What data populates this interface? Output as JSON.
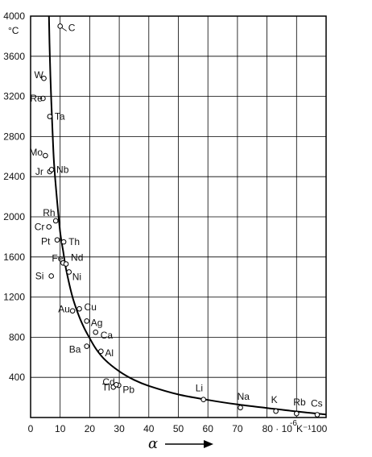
{
  "chart_data": {
    "type": "scatter",
    "xlim": [
      0,
      100
    ],
    "ylim": [
      0,
      4000
    ],
    "grid": true,
    "x_ticks": [
      0,
      10,
      20,
      30,
      40,
      50,
      60,
      70,
      80
    ],
    "x_tick_labels": [
      "0",
      "10",
      "20",
      "30",
      "40",
      "50",
      "60",
      "70",
      "80 · 10"
    ],
    "x_end_label": "K⁻¹100",
    "x_exponent": "-6",
    "y_ticks": [
      400,
      800,
      1200,
      1600,
      2000,
      2400,
      2800,
      3200,
      3600,
      4000
    ],
    "y_tick_labels": [
      "400",
      "800",
      "1200",
      "1600",
      "2000",
      "2400",
      "2800",
      "3200",
      "3600",
      "4000"
    ],
    "y_unit": "°C",
    "xlabel": "α",
    "points": [
      {
        "label": "C",
        "x": 10,
        "y": 3900
      },
      {
        "label": "W",
        "x": 4.5,
        "y": 3380
      },
      {
        "label": "Re",
        "x": 4.2,
        "y": 3180
      },
      {
        "label": "Ta",
        "x": 6.5,
        "y": 3000
      },
      {
        "label": "Mo",
        "x": 5.0,
        "y": 2610
      },
      {
        "label": "Jr",
        "x": 6.5,
        "y": 2450
      },
      {
        "label": "Nb",
        "x": 7.1,
        "y": 2470
      },
      {
        "label": "Rh",
        "x": 8.5,
        "y": 1960
      },
      {
        "label": "Cr",
        "x": 6.2,
        "y": 1900
      },
      {
        "label": "Th",
        "x": 11.2,
        "y": 1750
      },
      {
        "label": "Pt",
        "x": 9.0,
        "y": 1770
      },
      {
        "label": "Fe",
        "x": 11.0,
        "y": 1540
      },
      {
        "label": "Nd",
        "x": 12.0,
        "y": 1530
      },
      {
        "label": "Si",
        "x": 7.0,
        "y": 1410
      },
      {
        "label": "Ni",
        "x": 13.0,
        "y": 1450
      },
      {
        "label": "Au",
        "x": 14.2,
        "y": 1063
      },
      {
        "label": "Cu",
        "x": 16.5,
        "y": 1083
      },
      {
        "label": "Ag",
        "x": 19.0,
        "y": 961
      },
      {
        "label": "Ca",
        "x": 22.0,
        "y": 850
      },
      {
        "label": "Ba",
        "x": 19.0,
        "y": 710
      },
      {
        "label": "Al",
        "x": 23.8,
        "y": 660
      },
      {
        "label": "Tl",
        "x": 28.0,
        "y": 303
      },
      {
        "label": "Cd",
        "x": 29.8,
        "y": 321
      },
      {
        "label": "Pb",
        "x": 29.0,
        "y": 327
      },
      {
        "label": "Li",
        "x": 58.5,
        "y": 179
      },
      {
        "label": "Na",
        "x": 71.0,
        "y": 98
      },
      {
        "label": "K",
        "x": 83.0,
        "y": 63
      },
      {
        "label": "Rb",
        "x": 90.0,
        "y": 39
      },
      {
        "label": "Cs",
        "x": 97.0,
        "y": 28
      }
    ],
    "curve": [
      [
        6.2,
        4000
      ],
      [
        6.5,
        3600
      ],
      [
        7,
        3150
      ],
      [
        7.5,
        2800
      ],
      [
        8,
        2500
      ],
      [
        9,
        2150
      ],
      [
        10,
        1850
      ],
      [
        11,
        1660
      ],
      [
        12,
        1480
      ],
      [
        14,
        1220
      ],
      [
        16,
        1040
      ],
      [
        18,
        900
      ],
      [
        20,
        790
      ],
      [
        22,
        690
      ],
      [
        25,
        580
      ],
      [
        30,
        460
      ],
      [
        35,
        375
      ],
      [
        40,
        315
      ],
      [
        50,
        230
      ],
      [
        60,
        175
      ],
      [
        70,
        130
      ],
      [
        80,
        95
      ],
      [
        90,
        60
      ],
      [
        100,
        30
      ]
    ]
  }
}
